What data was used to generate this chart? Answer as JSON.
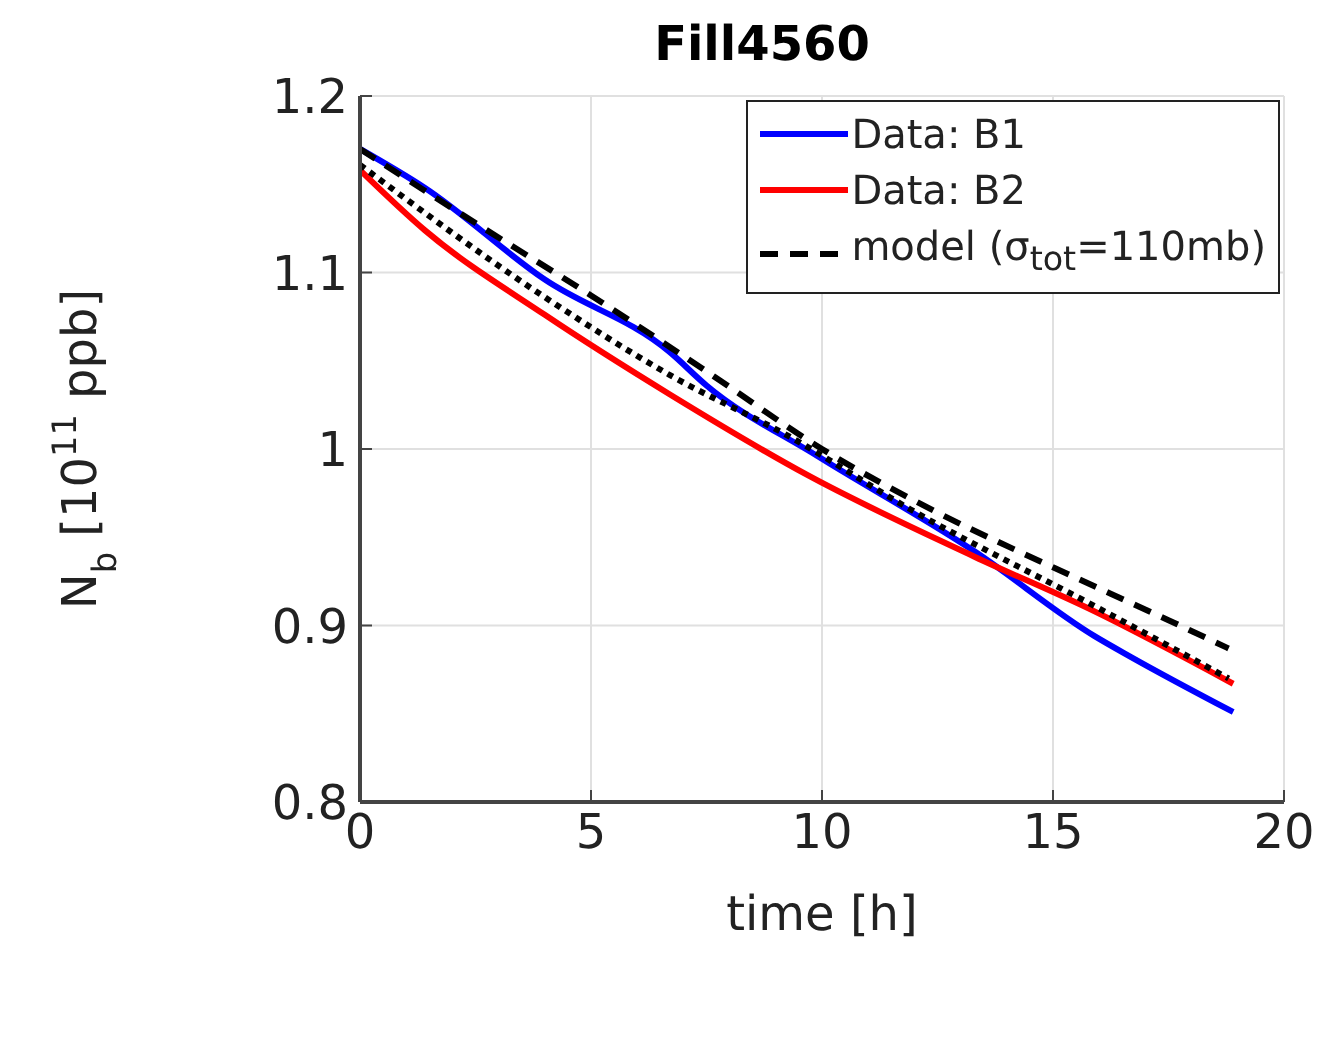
{
  "chart_data": {
    "type": "line",
    "title": "Fill4560",
    "xlabel": "time [h]",
    "ylabel": "N$_{b}$ [10$^{11}$ ppb]",
    "xlim": [
      0,
      20
    ],
    "xticks": [
      0,
      5,
      10,
      15,
      20
    ],
    "ylim": [
      0.8,
      1.2
    ],
    "yticks": [
      0.8,
      0.9,
      1,
      1.1,
      1.2
    ],
    "grid": true,
    "legend": "top right",
    "marker": "none",
    "series": [
      {
        "name": "Data: B1",
        "color": "#0000ff",
        "line_style": "solid",
        "x": [
          0,
          1.4,
          4,
          6.7,
          7.5,
          9.9,
          13.3,
          15.9,
          16.7,
          18.9
        ],
        "values": [
          1.17,
          1.148,
          1.096,
          1.055,
          1.036,
          0.996,
          0.942,
          0.894,
          0.882,
          0.851
        ]
      },
      {
        "name": "Data: B2",
        "color": "#ff0000",
        "line_style": "solid",
        "x": [
          0,
          1.4,
          4,
          6.7,
          9.7,
          13.3,
          15.9,
          18.9
        ],
        "values": [
          1.158,
          1.124,
          1.076,
          1.031,
          0.985,
          0.939,
          0.908,
          0.867
        ]
      },
      {
        "name": "model (σ$_{tot}$=110mb)",
        "color": "#000000",
        "line_style": "dashed",
        "x": [
          0,
          2.5,
          5,
          7.5,
          10,
          12.5,
          15,
          17.5,
          18.8
        ],
        "values": [
          1.17,
          1.128,
          1.087,
          1.044,
          1,
          0.964,
          0.933,
          0.903,
          0.887
        ]
      },
      {
        "color": "#000000",
        "line_style": "dotted",
        "x": [
          0,
          4,
          6.7,
          9.3,
          11.9,
          15.9,
          18.8
        ],
        "values": [
          1.161,
          1.086,
          1.042,
          1.007,
          0.966,
          0.911,
          0.87
        ]
      }
    ]
  }
}
